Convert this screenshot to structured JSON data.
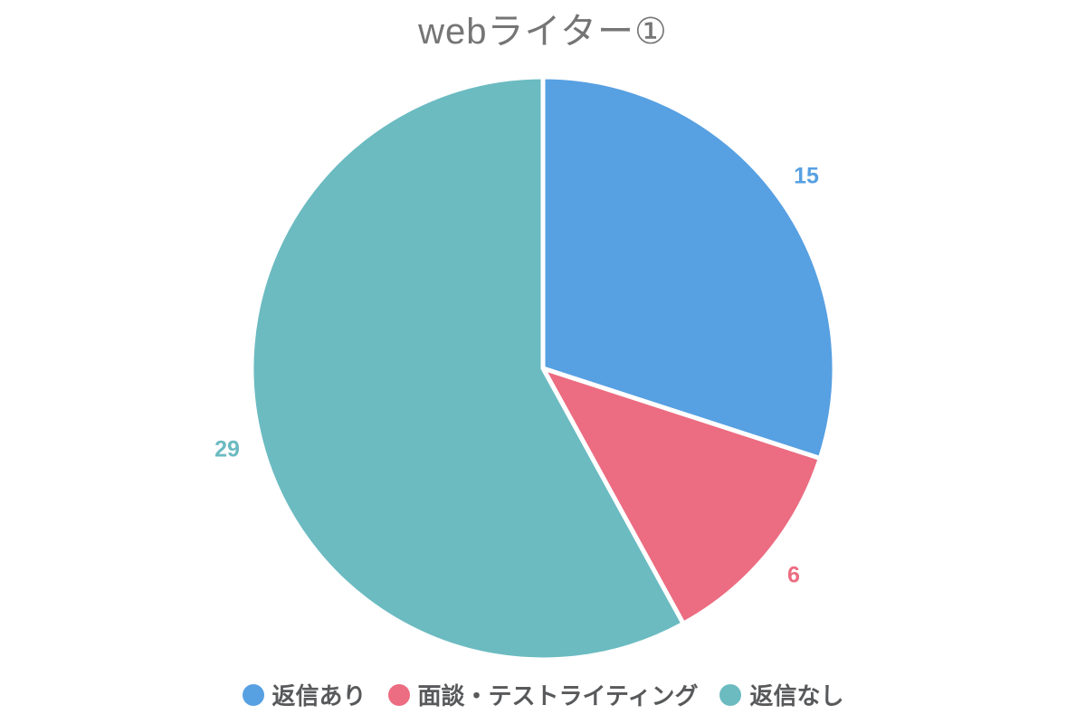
{
  "title": "webライター①",
  "chart_data": {
    "type": "pie",
    "labels": [
      "返信あり",
      "面談・テストライティング",
      "返信なし"
    ],
    "values": [
      15,
      6,
      29
    ],
    "total": 50,
    "colors": [
      "#57A0E2",
      "#EC6C81",
      "#6BBBC1"
    ],
    "start_angle_deg": 0,
    "direction": "clockwise",
    "slice_border_color": "#FFFFFF",
    "value_labels_position": "outside",
    "legend_position": "bottom",
    "title_color": "#757575",
    "legend_text_color": "#58595B",
    "background_color": "#FFFFFF"
  }
}
